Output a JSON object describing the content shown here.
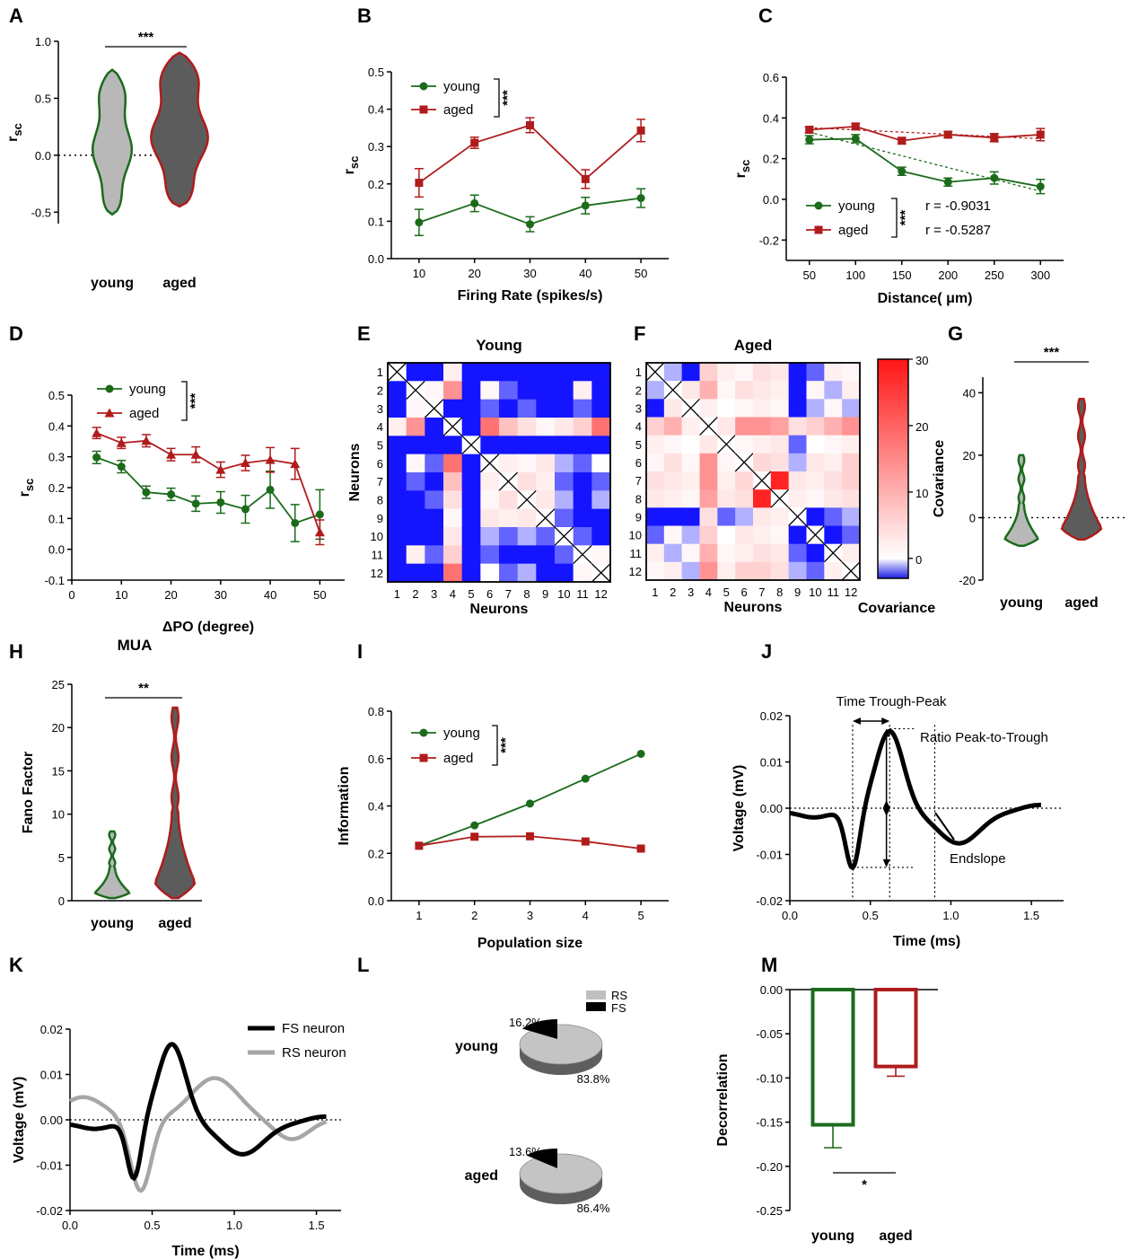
{
  "colors": {
    "young": "#1b6b1b",
    "aged": "#b01c1c",
    "young_fill": "#b8b8b8",
    "aged_fill": "#5c5c5c",
    "fs": "#000000",
    "rs": "#a6a6a6"
  },
  "panels": {
    "A": {
      "label": "A",
      "type": "violin",
      "ylabel": "r",
      "ylabel_sub": "sc",
      "yticks": [
        "1.0",
        "0.5",
        "0.0",
        "-0.5"
      ],
      "ylim": [
        -0.6,
        1.0
      ],
      "categories": [
        "young",
        "aged"
      ],
      "significance": "***",
      "violins": [
        {
          "name": "young",
          "min": -0.52,
          "max": 0.75
        },
        {
          "name": "aged",
          "min": -0.45,
          "max": 0.9
        }
      ]
    },
    "B": {
      "label": "B",
      "type": "line",
      "xlabel": "Firing Rate (spikes/s)",
      "ylabel": "r",
      "ylabel_sub": "sc",
      "xticks": [
        "10",
        "20",
        "30",
        "40",
        "50"
      ],
      "yticks": [
        "0.5",
        "0.4",
        "0.3",
        "0.2",
        "0.1",
        "0.0"
      ],
      "xlim": [
        5,
        55
      ],
      "ylim": [
        0,
        0.5
      ],
      "significance": "***",
      "x": [
        10,
        20,
        30,
        40,
        50
      ],
      "series": [
        {
          "name": "young",
          "values": [
            0.097,
            0.148,
            0.092,
            0.142,
            0.162
          ],
          "err": [
            0.035,
            0.022,
            0.02,
            0.022,
            0.025
          ],
          "marker": "circle"
        },
        {
          "name": "aged",
          "values": [
            0.203,
            0.31,
            0.357,
            0.213,
            0.343
          ],
          "err": [
            0.038,
            0.015,
            0.02,
            0.025,
            0.03
          ],
          "marker": "square"
        }
      ]
    },
    "C": {
      "label": "C",
      "type": "line",
      "xlabel": "Distance( μm)",
      "ylabel": "r",
      "ylabel_sub": "sc",
      "xticks": [
        "50",
        "100",
        "150",
        "200",
        "250",
        "300"
      ],
      "yticks": [
        "0.6",
        "0.4",
        "0.2",
        "0.0",
        "-0.2"
      ],
      "xlim": [
        25,
        325
      ],
      "ylim": [
        -0.3,
        0.6
      ],
      "significance": "***",
      "x": [
        50,
        100,
        150,
        200,
        250,
        300
      ],
      "series": [
        {
          "name": "young",
          "values": [
            0.293,
            0.298,
            0.138,
            0.085,
            0.105,
            0.063
          ],
          "err": [
            0.02,
            0.02,
            0.02,
            0.02,
            0.03,
            0.035
          ],
          "marker": "circle",
          "r": "r = -0.9031",
          "fit": [
            0.33,
            0.04
          ]
        },
        {
          "name": "aged",
          "values": [
            0.342,
            0.358,
            0.288,
            0.318,
            0.303,
            0.318
          ],
          "err": [
            0.015,
            0.015,
            0.015,
            0.015,
            0.02,
            0.03
          ],
          "marker": "square",
          "r": "r = -0.5287",
          "fit": [
            0.352,
            0.298
          ]
        }
      ]
    },
    "D": {
      "label": "D",
      "type": "line",
      "xlabel": "ΔPO (degree)",
      "ylabel": "r",
      "ylabel_sub": "sc",
      "xticks": [
        "0",
        "10",
        "20",
        "30",
        "40",
        "50"
      ],
      "yticks": [
        "0.5",
        "0.4",
        "0.3",
        "0.2",
        "0.1",
        "0.0",
        "-0.1"
      ],
      "xlim": [
        0,
        55
      ],
      "ylim": [
        -0.1,
        0.5
      ],
      "significance": "***",
      "x": [
        5,
        10,
        15,
        20,
        25,
        30,
        35,
        40,
        45,
        50
      ],
      "series": [
        {
          "name": "young",
          "values": [
            0.298,
            0.268,
            0.185,
            0.178,
            0.148,
            0.152,
            0.13,
            0.193,
            0.085,
            0.113
          ],
          "err": [
            0.02,
            0.02,
            0.02,
            0.02,
            0.025,
            0.035,
            0.045,
            0.06,
            0.06,
            0.08
          ],
          "marker": "circle"
        },
        {
          "name": "aged",
          "values": [
            0.377,
            0.345,
            0.352,
            0.307,
            0.307,
            0.258,
            0.28,
            0.29,
            0.277,
            0.055
          ],
          "err": [
            0.018,
            0.018,
            0.02,
            0.02,
            0.025,
            0.025,
            0.025,
            0.04,
            0.05,
            0.04
          ],
          "marker": "triangle"
        }
      ]
    },
    "E": {
      "label": "E",
      "type": "heatmap",
      "title": "Young",
      "xlabel": "Neurons",
      "ylabel": "Neurons",
      "ticks": [
        "1",
        "2",
        "3",
        "4",
        "5",
        "6",
        "7",
        "8",
        "9",
        "10",
        "11",
        "12"
      ],
      "matrix": [
        [
          null,
          -6,
          -4,
          2,
          -5,
          -7,
          -8,
          -8,
          -7,
          -6,
          -4,
          -4
        ],
        [
          -6,
          null,
          1,
          14,
          -4,
          1,
          -2,
          -3,
          -3,
          -3,
          2,
          -3
        ],
        [
          -4,
          1,
          null,
          -3,
          -5,
          -2,
          -3,
          -2,
          -4,
          -3,
          -2,
          -4
        ],
        [
          2,
          14,
          -3,
          null,
          -5,
          18,
          8,
          4,
          1,
          3,
          6,
          18
        ],
        [
          -5,
          -4,
          -5,
          -5,
          null,
          -4,
          -4,
          -4,
          -5,
          -5,
          -5,
          -6
        ],
        [
          -7,
          1,
          -2,
          18,
          -4,
          null,
          2,
          1,
          3,
          -1,
          -2,
          0
        ],
        [
          -8,
          -2,
          -3,
          8,
          -4,
          2,
          null,
          4,
          2,
          -2,
          -4,
          -2
        ],
        [
          -8,
          -3,
          -2,
          4,
          -4,
          1,
          4,
          null,
          3,
          -1,
          -3,
          -1
        ],
        [
          -7,
          -3,
          -4,
          1,
          -5,
          3,
          2,
          3,
          null,
          -2,
          -3,
          -4
        ],
        [
          -6,
          -3,
          -3,
          3,
          -5,
          -1,
          -2,
          -1,
          -2,
          null,
          -2,
          -3
        ],
        [
          -4,
          2,
          -2,
          6,
          -5,
          -2,
          -4,
          -3,
          -3,
          -2,
          null,
          1
        ],
        [
          -4,
          -3,
          -4,
          18,
          -6,
          0,
          -2,
          -1,
          -4,
          -3,
          1,
          null
        ]
      ]
    },
    "F": {
      "label": "F",
      "type": "heatmap",
      "title": "Aged",
      "xlabel": "Neurons",
      "ylabel": "",
      "ticks": [
        "1",
        "2",
        "3",
        "4",
        "5",
        "6",
        "7",
        "8",
        "9",
        "10",
        "11",
        "12"
      ],
      "matrix": [
        [
          null,
          -1,
          -3,
          6,
          2,
          1,
          4,
          3,
          -6,
          -2,
          2,
          1
        ],
        [
          -1,
          null,
          3,
          10,
          1,
          4,
          3,
          2,
          -4,
          1,
          -1,
          2
        ],
        [
          -3,
          3,
          null,
          2,
          0,
          1,
          2,
          1,
          -3,
          -1,
          1,
          -1
        ],
        [
          6,
          10,
          2,
          null,
          3,
          14,
          14,
          12,
          4,
          6,
          10,
          14
        ],
        [
          2,
          1,
          0,
          3,
          null,
          1,
          2,
          3,
          -2,
          0,
          1,
          2
        ],
        [
          1,
          4,
          1,
          14,
          1,
          null,
          5,
          4,
          -1,
          3,
          2,
          6
        ],
        [
          4,
          3,
          2,
          14,
          2,
          5,
          null,
          28,
          3,
          2,
          4,
          6
        ],
        [
          3,
          2,
          1,
          12,
          3,
          4,
          28,
          null,
          2,
          1,
          3,
          4
        ],
        [
          -6,
          -4,
          -3,
          4,
          -2,
          -1,
          3,
          2,
          null,
          -3,
          -2,
          -1
        ],
        [
          -2,
          1,
          -1,
          6,
          0,
          3,
          2,
          1,
          -3,
          null,
          -4,
          -2
        ],
        [
          2,
          -1,
          1,
          10,
          1,
          2,
          4,
          3,
          -2,
          -4,
          null,
          2
        ],
        [
          1,
          2,
          -1,
          14,
          2,
          6,
          6,
          4,
          -1,
          -2,
          2,
          null
        ]
      ],
      "colorbar": {
        "label": "Covariance",
        "ticks": [
          "30",
          "20",
          "10",
          "0"
        ],
        "range": [
          -3,
          30
        ]
      }
    },
    "G": {
      "label": "G",
      "type": "violin",
      "ylabel": "Covariance",
      "yticks": [
        "40",
        "20",
        "0",
        "-20"
      ],
      "ylim": [
        -20,
        45
      ],
      "categories": [
        "young",
        "aged"
      ],
      "significance": "***",
      "violins": [
        {
          "name": "young",
          "min": -9,
          "max": 20
        },
        {
          "name": "aged",
          "min": -7,
          "max": 38
        }
      ]
    },
    "H": {
      "label": "H",
      "type": "violin",
      "title": "MUA",
      "ylabel": "Fano Factor",
      "yticks": [
        "25",
        "20",
        "15",
        "10",
        "5",
        "0"
      ],
      "ylim": [
        0,
        25
      ],
      "categories": [
        "young",
        "aged"
      ],
      "significance": "**",
      "violins": [
        {
          "name": "young",
          "min": 0.3,
          "max": 8
        },
        {
          "name": "aged",
          "min": 0.3,
          "max": 22.3
        }
      ]
    },
    "I": {
      "label": "I",
      "type": "line",
      "xlabel": "Population size",
      "ylabel": "Information",
      "xticks": [
        "1",
        "2",
        "3",
        "4",
        "5"
      ],
      "yticks": [
        "0.8",
        "0.6",
        "0.4",
        "0.2",
        "0.0"
      ],
      "xlim": [
        0.5,
        5.5
      ],
      "ylim": [
        0,
        0.8
      ],
      "significance": "***",
      "x": [
        1,
        2,
        3,
        4,
        5
      ],
      "series": [
        {
          "name": "young",
          "values": [
            0.232,
            0.318,
            0.41,
            0.515,
            0.62
          ],
          "marker": "circle"
        },
        {
          "name": "aged",
          "values": [
            0.232,
            0.27,
            0.272,
            0.25,
            0.22
          ],
          "marker": "square"
        }
      ]
    },
    "J": {
      "label": "J",
      "type": "line",
      "xlabel": "Time (ms)",
      "ylabel": "Voltage (mV)",
      "xticks": [
        "0.0",
        "0.5",
        "1.0",
        "1.5"
      ],
      "yticks": [
        "0.02",
        "0.01",
        "0.00",
        "-0.01",
        "-0.02"
      ],
      "xlim": [
        0,
        1.7
      ],
      "ylim": [
        -0.02,
        0.02
      ],
      "annotations": {
        "time": "Time Trough-Peak",
        "ratio": "Ratio Peak-to-Trough",
        "endslope": "Endslope"
      }
    },
    "K": {
      "label": "K",
      "type": "line",
      "xlabel": "Time (ms)",
      "ylabel": "Voltage (mV)",
      "xticks": [
        "0.0",
        "0.5",
        "1.0",
        "1.5"
      ],
      "yticks": [
        "0.02",
        "0.01",
        "0.00",
        "-0.01",
        "-0.02"
      ],
      "xlim": [
        0,
        1.65
      ],
      "ylim": [
        -0.02,
        0.02
      ],
      "series": [
        {
          "name": "FS neuron"
        },
        {
          "name": "RS neuron"
        }
      ]
    },
    "L": {
      "label": "L",
      "type": "pie",
      "legend": [
        "RS",
        "FS"
      ],
      "pies": [
        {
          "group": "young",
          "fs_pct": 16.2,
          "rs_pct": 83.8,
          "fs_label": "16.2%",
          "rs_label": "83.8%"
        },
        {
          "group": "aged",
          "fs_pct": 13.6,
          "rs_pct": 86.4,
          "fs_label": "13.6%",
          "rs_label": "86.4%"
        }
      ]
    },
    "M": {
      "label": "M",
      "type": "bar",
      "ylabel": "Decorrelation",
      "yticks": [
        "0.00",
        "-0.05",
        "-0.10",
        "-0.15",
        "-0.20",
        "-0.25"
      ],
      "ylim": [
        -0.25,
        0
      ],
      "categories": [
        "young",
        "aged"
      ],
      "significance": "*",
      "values": [
        -0.153,
        -0.087
      ],
      "err": [
        0.026,
        0.011
      ]
    }
  }
}
